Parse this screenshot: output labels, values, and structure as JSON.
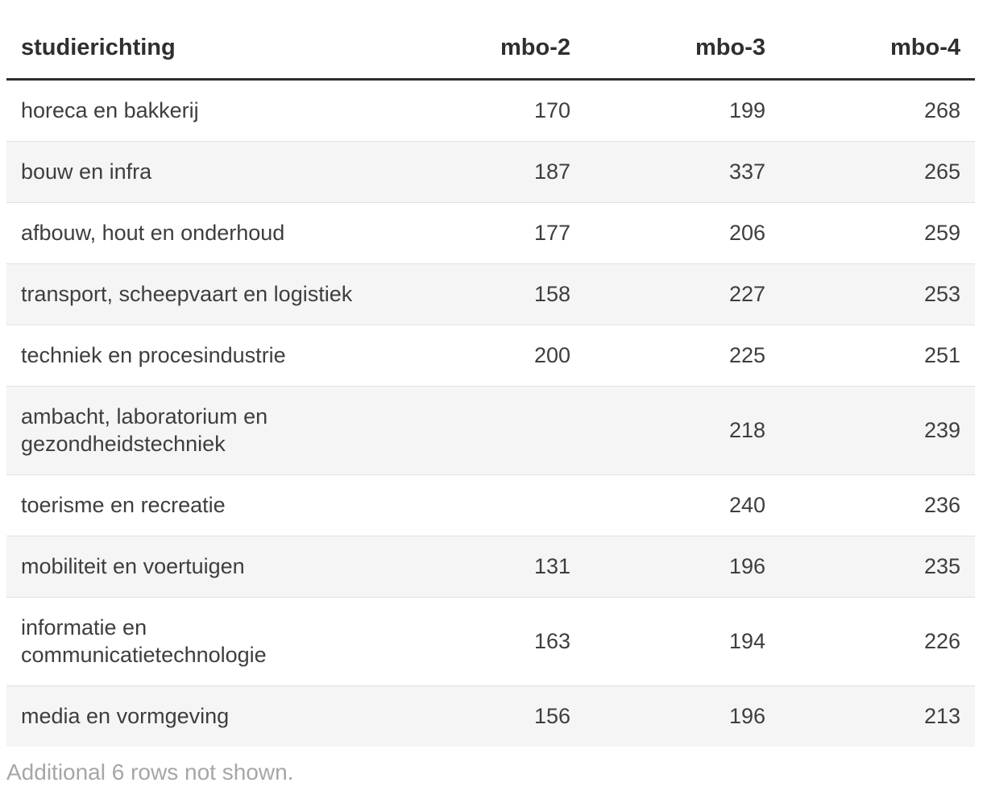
{
  "table": {
    "columns": [
      "studierichting",
      "mbo-2",
      "mbo-3",
      "mbo-4"
    ],
    "rows": [
      {
        "label": "horeca en bakkerij",
        "mbo2": "170",
        "mbo3": "199",
        "mbo4": "268"
      },
      {
        "label": "bouw en infra",
        "mbo2": "187",
        "mbo3": "337",
        "mbo4": "265"
      },
      {
        "label": "afbouw, hout en onderhoud",
        "mbo2": "177",
        "mbo3": "206",
        "mbo4": "259"
      },
      {
        "label": "transport, scheepvaart en logistiek",
        "mbo2": "158",
        "mbo3": "227",
        "mbo4": "253"
      },
      {
        "label": "techniek en procesindustrie",
        "mbo2": "200",
        "mbo3": "225",
        "mbo4": "251"
      },
      {
        "label": "ambacht, laboratorium en gezondheidstechniek",
        "mbo2": "",
        "mbo3": "218",
        "mbo4": "239"
      },
      {
        "label": "toerisme en recreatie",
        "mbo2": "",
        "mbo3": "240",
        "mbo4": "236"
      },
      {
        "label": "mobiliteit en voertuigen",
        "mbo2": "131",
        "mbo3": "196",
        "mbo4": "235"
      },
      {
        "label": "informatie en communicatietechnologie",
        "mbo2": "163",
        "mbo3": "194",
        "mbo4": "226"
      },
      {
        "label": "media en vormgeving",
        "mbo2": "156",
        "mbo3": "196",
        "mbo4": "213"
      }
    ]
  },
  "footer": {
    "note": "Additional 6 rows not shown."
  },
  "colors": {
    "header_text": "#2f2f2f",
    "body_text": "#3e3e3e",
    "zebra_stripe": "#f5f5f5",
    "row_divider": "#e2e2e2",
    "header_rule": "#2e2e2e",
    "footnote_text": "#a6a6a6"
  },
  "chart_data": {
    "type": "table",
    "title": "",
    "columns": [
      "studierichting",
      "mbo-2",
      "mbo-3",
      "mbo-4"
    ],
    "rows": [
      [
        "horeca en bakkerij",
        170,
        199,
        268
      ],
      [
        "bouw en infra",
        187,
        337,
        265
      ],
      [
        "afbouw, hout en onderhoud",
        177,
        206,
        259
      ],
      [
        "transport, scheepvaart en logistiek",
        158,
        227,
        253
      ],
      [
        "techniek en procesindustrie",
        200,
        225,
        251
      ],
      [
        "ambacht, laboratorium en gezondheidstechniek",
        null,
        218,
        239
      ],
      [
        "toerisme en recreatie",
        null,
        240,
        236
      ],
      [
        "mobiliteit en voertuigen",
        131,
        196,
        235
      ],
      [
        "informatie en communicatietechnologie",
        163,
        194,
        226
      ],
      [
        "media en vormgeving",
        156,
        196,
        213
      ]
    ],
    "footnote": "Additional 6 rows not shown."
  }
}
